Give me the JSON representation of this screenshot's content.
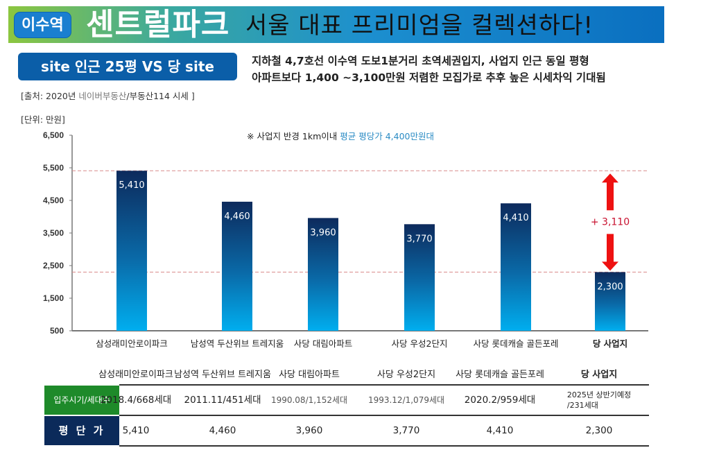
{
  "banner": {
    "badge": "이수역",
    "brand": "센트럴파크",
    "slogan": "서울 대표 프리미엄을 컬렉션하다!"
  },
  "section_tag": "site 인근 25평 VS 당 site",
  "description": {
    "line1": "지하철 4,7호선 이수역 도보1분거리 초역세권입지, 사업지 인근 동일 평형",
    "line2": "아파트보다 1,400 ~3,100만원 저렴한 모집가로 추후 높은 시세차익 기대됨"
  },
  "source": {
    "prefix": "[출처: 2020년 ",
    "gray": "네이버부동산",
    "suffix": "/부동산114 시세 ]"
  },
  "unit_label": "[단위: 만원]",
  "note": {
    "prefix": "※ 사업지 반경 1km이내 ",
    "highlight": "평균 평당가 4,400만원대"
  },
  "colors": {
    "bar_top": "#0d2a5c",
    "bar_bottom": "#00aeef",
    "arrow": "#ee1111",
    "diff_text": "#c8102e",
    "dash_line": "#d98a8a",
    "row1_head": "#1e8a2a",
    "row2_head": "#0b2a5a"
  },
  "chart_data": {
    "type": "bar",
    "title": "",
    "xlabel": "",
    "ylabel": "만원",
    "ylim": [
      500,
      6500
    ],
    "yticks": [
      "6,500",
      "5,500",
      "4,500",
      "3,500",
      "2,500",
      "1,500",
      "500"
    ],
    "ytick_values": [
      6500,
      5500,
      4500,
      3500,
      2500,
      1500,
      500
    ],
    "grid": false,
    "categories": [
      "삼성래미안로이파크",
      "남성역 두산위브 트레지움",
      "사당 대림아파트",
      "사당 우성2단지",
      "사당 롯데캐슬 골든포레",
      "당 사업지"
    ],
    "values": [
      5410,
      4460,
      3960,
      3770,
      4410,
      2300
    ],
    "value_labels": [
      "5,410",
      "4,460",
      "3,960",
      "3,770",
      "4,410",
      "2,300"
    ],
    "reference_lines": [
      5410,
      2300
    ],
    "annotation": {
      "text": "+ 3,110",
      "from": 2300,
      "to": 5410
    }
  },
  "table": {
    "headers": [
      "삼성래미안로이파크",
      "남성역 두산위브 트레지움",
      "사당 대림아파트",
      "사당 우성2단지",
      "사당 롯데캐슬 골든포레",
      "당 사업지"
    ],
    "rows": [
      {
        "label": "입주시기/세대수",
        "cells": [
          "2018.4/668세대",
          "2011.11/451세대",
          "1990.08/1,152세대",
          "1993.12/1,079세대",
          "2020.2/959세대",
          "2025년 상반기예정\n/231세대"
        ]
      },
      {
        "label": "평 단 가",
        "cells": [
          "5,410",
          "4,460",
          "3,960",
          "3,770",
          "4,410",
          "2,300"
        ]
      }
    ]
  }
}
